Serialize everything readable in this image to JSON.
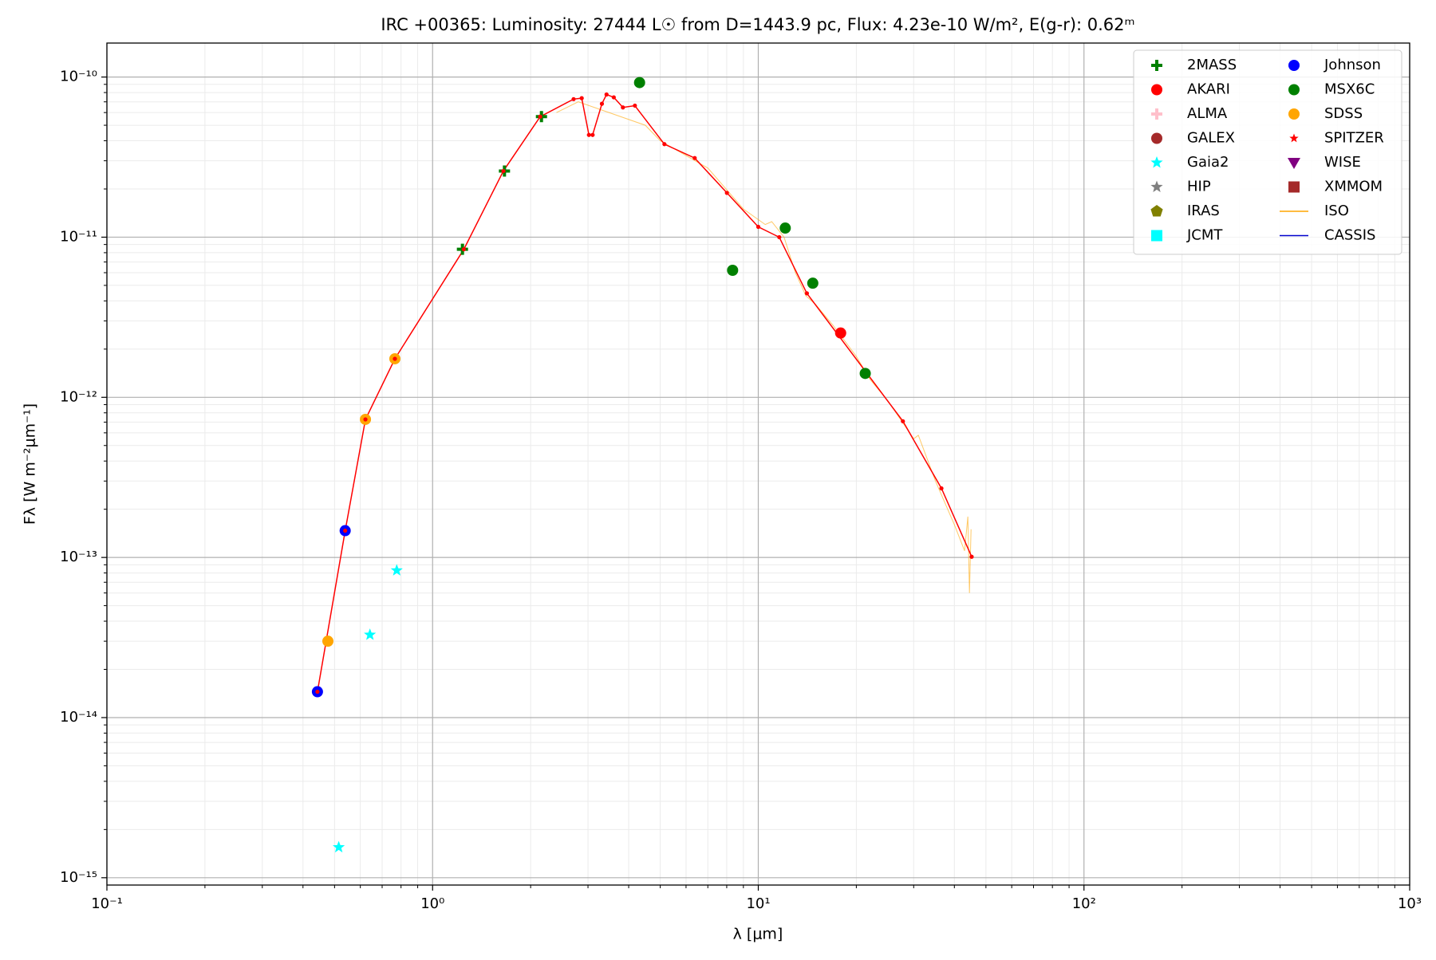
{
  "chart_data": {
    "type": "scatter",
    "title": "IRC +00365:  Luminosity: 27444 L☉ from D=1443.9 pc, Flux: 4.23e-10 W/m², E(g-r): 0.62ᵐ",
    "xlabel": "λ [μm]",
    "ylabel": "Fλ [W m⁻²μm⁻¹]",
    "xscale": "log",
    "yscale": "log",
    "xlim": [
      0.1,
      1000
    ],
    "ylim": [
      9e-16,
      1.63e-10
    ],
    "xticks": [
      {
        "value": 0.1,
        "label": "10⁻¹"
      },
      {
        "value": 1,
        "label": "10⁰"
      },
      {
        "value": 10,
        "label": "10¹"
      },
      {
        "value": 100,
        "label": "10²"
      },
      {
        "value": 1000,
        "label": "10³"
      }
    ],
    "yticks": [
      {
        "value": 1e-15,
        "label": "10⁻¹⁵"
      },
      {
        "value": 1e-14,
        "label": "10⁻¹⁴"
      },
      {
        "value": 1e-13,
        "label": "10⁻¹³"
      },
      {
        "value": 1e-12,
        "label": "10⁻¹²"
      },
      {
        "value": 1e-11,
        "label": "10⁻¹¹"
      },
      {
        "value": 1e-10,
        "label": "10⁻¹⁰"
      }
    ],
    "grid": true,
    "minor_grid": true,
    "legend": "upper right",
    "series": [
      {
        "name": "2MASS",
        "color": "#008000",
        "marker": "plus",
        "x": [
          1.235,
          1.662,
          2.159
        ],
        "values": [
          8.4e-12,
          2.59e-11,
          5.66e-11
        ]
      },
      {
        "name": "AKARI",
        "color": "#ff0000",
        "marker": "circle",
        "x": [
          17.9
        ],
        "values": [
          2.52e-12
        ]
      },
      {
        "name": "ALMA",
        "color": "#ffc0cb",
        "marker": "plus",
        "x": [],
        "values": []
      },
      {
        "name": "GALEX",
        "color": "#a52a2a",
        "marker": "circle",
        "x": [],
        "values": []
      },
      {
        "name": "Gaia2",
        "color": "#00ffff",
        "marker": "star",
        "x": [
          0.515,
          0.642,
          0.776
        ],
        "values": [
          1.55e-15,
          3.29e-14,
          8.3e-14
        ]
      },
      {
        "name": "HIP",
        "color": "#808080",
        "marker": "star",
        "x": [],
        "values": []
      },
      {
        "name": "IRAS",
        "color": "#808000",
        "marker": "pentagon",
        "x": [],
        "values": []
      },
      {
        "name": "JCMT",
        "color": "#00ffff",
        "marker": "square",
        "x": [],
        "values": []
      },
      {
        "name": "Johnson",
        "color": "#0000ff",
        "marker": "circle",
        "x": [
          0.443,
          0.539
        ],
        "values": [
          1.45e-14,
          1.47e-13
        ]
      },
      {
        "name": "MSX6C",
        "color": "#008000",
        "marker": "circle",
        "x": [
          4.32,
          8.34,
          12.1,
          14.7,
          21.3
        ],
        "values": [
          9.23e-11,
          6.21e-12,
          1.14e-11,
          5.16e-12,
          1.41e-12
        ]
      },
      {
        "name": "SDSS",
        "color": "#ffa500",
        "marker": "circle",
        "x": [
          0.477,
          0.622,
          0.766
        ],
        "values": [
          3e-14,
          7.28e-13,
          1.74e-12
        ]
      },
      {
        "name": "SPITZER",
        "color": "#ff0000",
        "marker": "smallstar",
        "x": [],
        "values": []
      },
      {
        "name": "WISE",
        "color": "#800080",
        "marker": "triangle",
        "x": [],
        "values": []
      },
      {
        "name": "XMMOM",
        "color": "#a52a2a",
        "marker": "square",
        "x": [],
        "values": []
      },
      {
        "name": "ISO",
        "color": "#ffa500",
        "marker": "line",
        "x": [
          2.4,
          2.6,
          2.8,
          4.5,
          5,
          7,
          9,
          10.5,
          11,
          12,
          13,
          14,
          15,
          17,
          20,
          22,
          25,
          30,
          31,
          35,
          40,
          43,
          44,
          44.5,
          45
        ],
        "values": [
          6e-11,
          6.5e-11,
          7e-11,
          5e-11,
          4e-11,
          2.7e-11,
          1.5e-11,
          1.2e-11,
          1.25e-11,
          1e-11,
          6e-12,
          4.3e-12,
          3.8e-12,
          2.8e-12,
          1.8e-12,
          1.3e-12,
          9.5e-13,
          5.5e-13,
          5.8e-13,
          3e-13,
          1.6e-13,
          1.1e-13,
          1.8e-13,
          6e-14,
          1.5e-13
        ]
      },
      {
        "name": "CASSIS",
        "color": "#0000cd",
        "marker": "line",
        "x": [],
        "values": []
      }
    ],
    "model": {
      "color": "#ff0000",
      "x": [
        0.443,
        0.539,
        0.622,
        0.766,
        1.247,
        1.65,
        2.14,
        2.71,
        2.87,
        3.02,
        3.1,
        3.31,
        3.42,
        3.6,
        3.84,
        4.18,
        5.15,
        6.38,
        8.01,
        10.0,
        11.6,
        14.1,
        27.8,
        36.5,
        45.2
      ],
      "values": [
        1.45e-14,
        1.47e-13,
        7.28e-13,
        1.74e-12,
        8.4e-12,
        2.59e-11,
        5.66e-11,
        7.28e-11,
        7.38e-11,
        4.35e-11,
        4.35e-11,
        6.81e-11,
        7.78e-11,
        7.47e-11,
        6.46e-11,
        6.63e-11,
        3.81e-11,
        3.12e-11,
        1.89e-11,
        1.16e-11,
        1e-11,
        4.46e-12,
        7.09e-13,
        2.7e-13,
        1.01e-13
      ]
    }
  }
}
